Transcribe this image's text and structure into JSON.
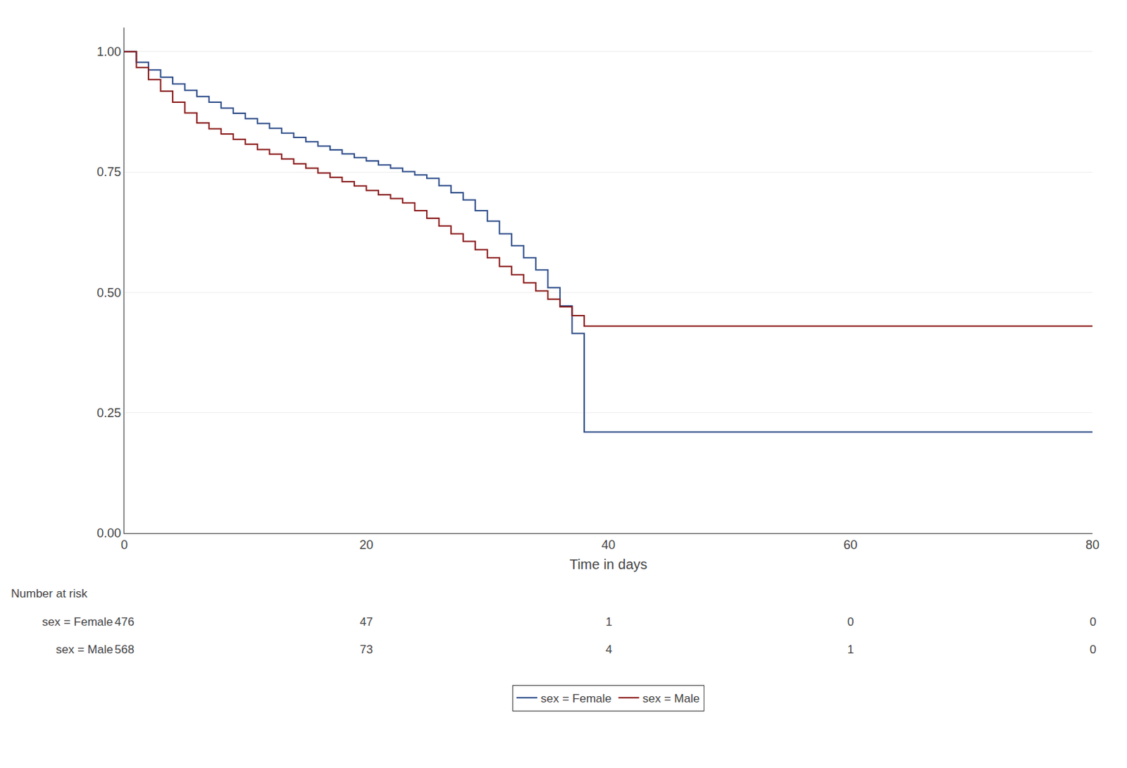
{
  "chart_data": {
    "type": "step",
    "xlabel": "Time in days",
    "x": [
      0,
      1,
      2,
      3,
      4,
      5,
      6,
      7,
      8,
      9,
      10,
      11,
      12,
      13,
      14,
      15,
      16,
      17,
      18,
      19,
      20,
      21,
      22,
      23,
      24,
      25,
      26,
      27,
      28,
      29,
      30,
      31,
      32,
      33,
      34,
      35,
      36,
      37,
      38,
      80
    ],
    "series": [
      {
        "name": "sex = Female",
        "color": "#2e4d8a",
        "values": [
          1.0,
          0.978,
          0.962,
          0.947,
          0.933,
          0.92,
          0.907,
          0.895,
          0.883,
          0.872,
          0.861,
          0.851,
          0.841,
          0.831,
          0.822,
          0.813,
          0.804,
          0.796,
          0.788,
          0.78,
          0.773,
          0.765,
          0.758,
          0.751,
          0.744,
          0.737,
          0.722,
          0.707,
          0.692,
          0.67,
          0.648,
          0.622,
          0.597,
          0.572,
          0.547,
          0.51,
          0.472,
          0.415,
          0.21,
          0.21
        ]
      },
      {
        "name": "sex = Male",
        "color": "#8b1a1a",
        "values": [
          1.0,
          0.967,
          0.942,
          0.918,
          0.895,
          0.873,
          0.852,
          0.84,
          0.829,
          0.818,
          0.808,
          0.797,
          0.787,
          0.777,
          0.767,
          0.758,
          0.748,
          0.739,
          0.73,
          0.721,
          0.712,
          0.703,
          0.695,
          0.686,
          0.67,
          0.654,
          0.638,
          0.622,
          0.606,
          0.589,
          0.572,
          0.554,
          0.537,
          0.52,
          0.503,
          0.486,
          0.47,
          0.452,
          0.43,
          0.43
        ]
      }
    ],
    "xlim": [
      0,
      80
    ],
    "xticks": [
      0,
      20,
      40,
      60,
      80
    ],
    "ylim": [
      0,
      1.05
    ],
    "yticks": [
      {
        "value": 0,
        "label": "0.00"
      },
      {
        "value": 0.25,
        "label": "0.25"
      },
      {
        "value": 0.5,
        "label": "0.50"
      },
      {
        "value": 0.75,
        "label": "0.75"
      },
      {
        "value": 1,
        "label": "1.00"
      }
    ],
    "grid": true,
    "legend": "bottom",
    "number_at_risk": {
      "label": "Number at risk",
      "times": [
        0,
        20,
        40,
        60,
        80
      ],
      "rows": [
        {
          "name": "sex = Female",
          "values": [
            476,
            47,
            1,
            0,
            0
          ]
        },
        {
          "name": "sex = Male",
          "values": [
            568,
            73,
            4,
            1,
            0
          ]
        }
      ]
    }
  }
}
